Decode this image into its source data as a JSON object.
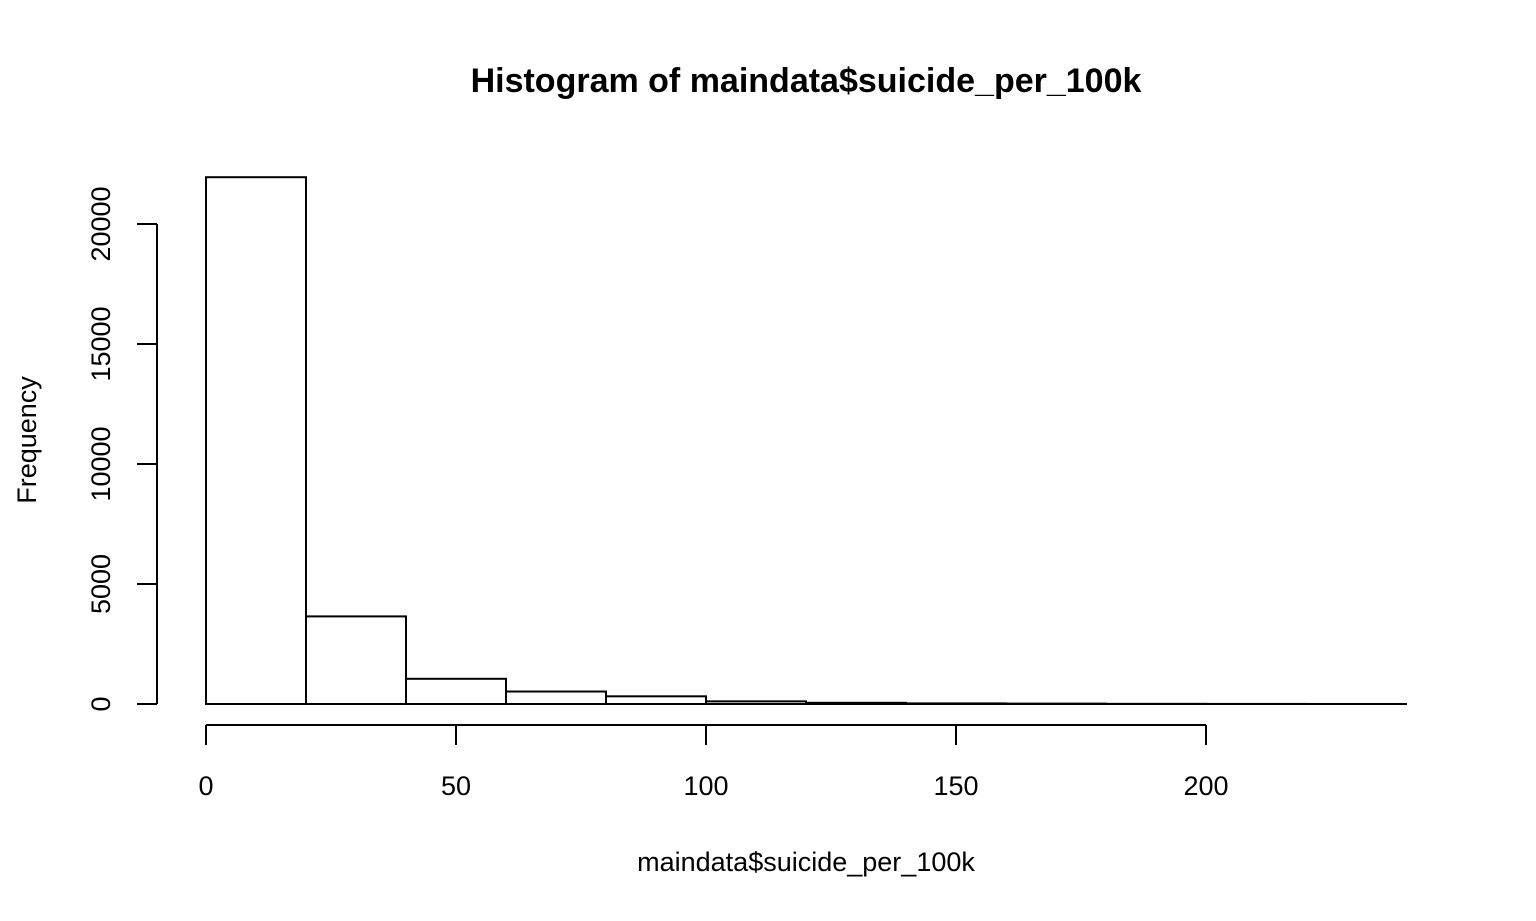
{
  "chart_data": {
    "type": "bar",
    "title": "Histogram of maindata$suicide_per_100k",
    "xlabel": "maindata$suicide_per_100k",
    "ylabel": "Frequency",
    "bins": [
      {
        "start": 0,
        "end": 20,
        "count": 21950
      },
      {
        "start": 20,
        "end": 40,
        "count": 3650
      },
      {
        "start": 40,
        "end": 60,
        "count": 1050
      },
      {
        "start": 60,
        "end": 80,
        "count": 520
      },
      {
        "start": 80,
        "end": 100,
        "count": 320
      },
      {
        "start": 100,
        "end": 120,
        "count": 110
      },
      {
        "start": 120,
        "end": 140,
        "count": 50
      },
      {
        "start": 140,
        "end": 160,
        "count": 25
      },
      {
        "start": 160,
        "end": 180,
        "count": 15
      },
      {
        "start": 180,
        "end": 200,
        "count": 6
      },
      {
        "start": 200,
        "end": 220,
        "count": 3
      },
      {
        "start": 220,
        "end": 240,
        "count": 1
      }
    ],
    "x_ticks": [
      "0",
      "50",
      "100",
      "150",
      "200"
    ],
    "y_ticks": [
      "0",
      "5000",
      "10000",
      "15000",
      "20000"
    ],
    "xlim": [
      0,
      240
    ],
    "ylim": [
      0,
      22000
    ],
    "x_axis_range": [
      0,
      200
    ],
    "y_axis_range": [
      0,
      20000
    ],
    "bar_fill": "#ffffff",
    "bar_stroke": "#000000",
    "grid": false,
    "legend": "none"
  }
}
